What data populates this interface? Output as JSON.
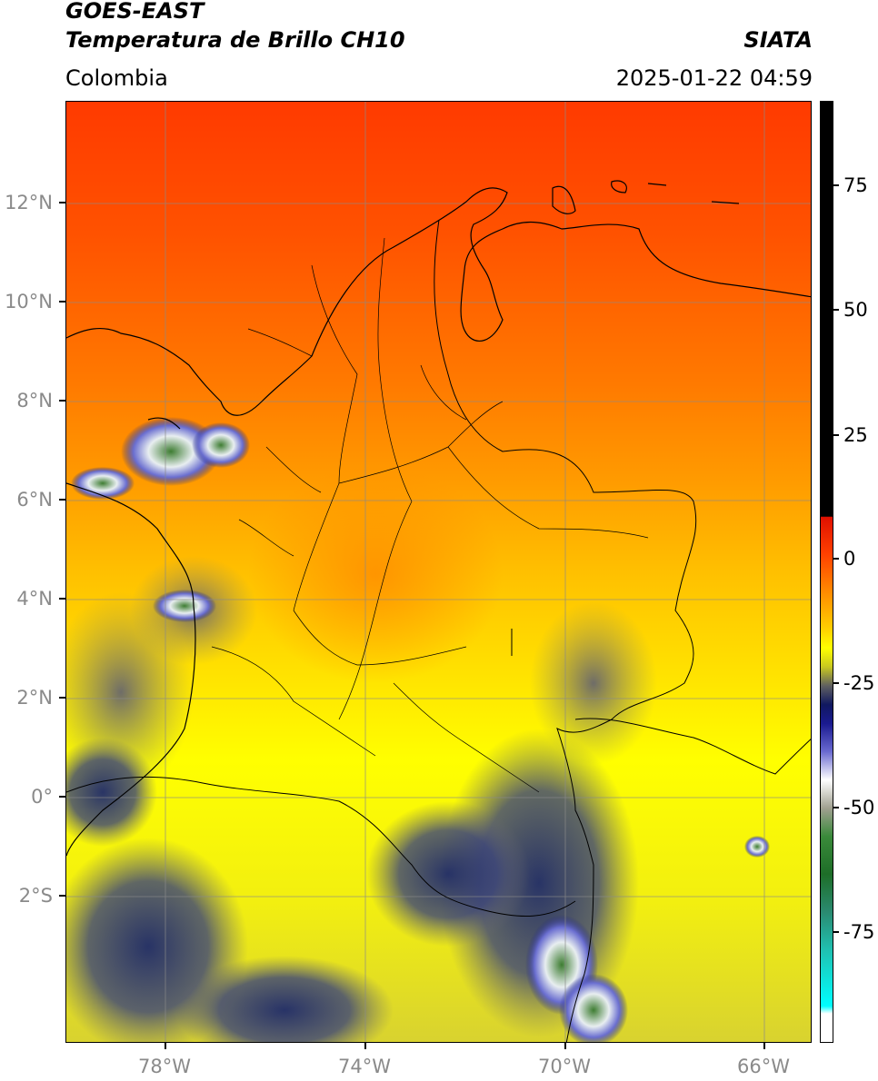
{
  "header": {
    "satellite": "GOES-EAST",
    "product": "Temperatura de Brillo CH10",
    "organization": "SIATA",
    "region": "Colombia",
    "datetime": "2025-01-22 04:59"
  },
  "map": {
    "lat_ticks": [
      "12°N",
      "10°N",
      "8°N",
      "6°N",
      "4°N",
      "2°N",
      "0°",
      "2°S"
    ],
    "lon_ticks": [
      "78°W",
      "74°W",
      "70°W",
      "66°W"
    ],
    "lat_range": [
      -5,
      14
    ],
    "lon_range": [
      -80,
      -65
    ],
    "gridlines": true
  },
  "colorbar": {
    "labels": [
      "75",
      "50",
      "25",
      "0",
      "-25",
      "-50",
      "-75"
    ],
    "range": [
      -97,
      89
    ]
  }
}
